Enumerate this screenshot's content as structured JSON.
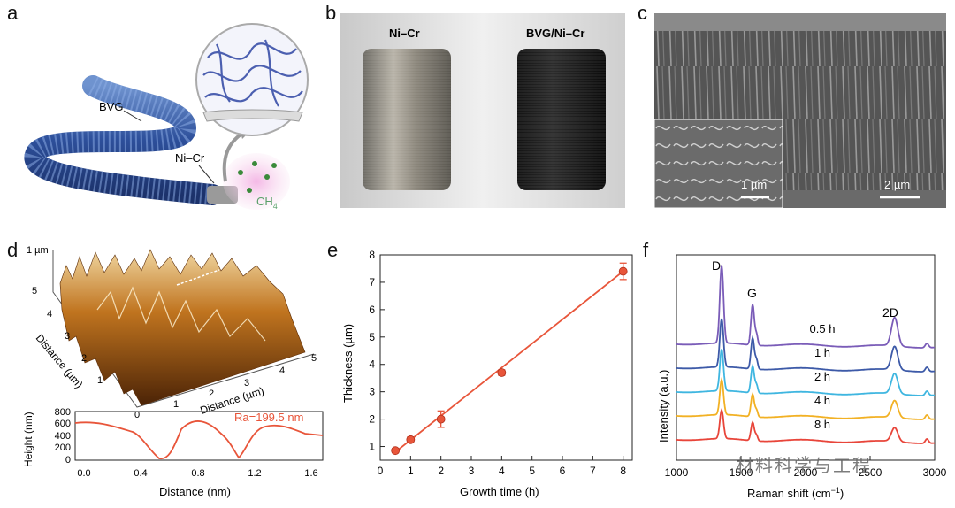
{
  "labels": {
    "a": "a",
    "b": "b",
    "c": "c",
    "d": "d",
    "e": "e",
    "f": "f"
  },
  "panel_a": {
    "bvg": "BVG",
    "nicr": "Ni–Cr",
    "ch4": "CH",
    "ch4_sub": "4"
  },
  "panel_b": {
    "left": "Ni–Cr",
    "right": "BVG/Ni–Cr"
  },
  "panel_c": {
    "inset_scale": "1 µm",
    "main_scale": "2 µm"
  },
  "panel_d": {
    "z_label": "1 µm",
    "y_axis_title": "Distance (µm)",
    "x_axis_title": "Distance (µm)",
    "y_ticks": [
      "0",
      "1",
      "2",
      "3",
      "4",
      "5"
    ],
    "x_ticks": [
      "0",
      "1",
      "2",
      "3",
      "4",
      "5"
    ],
    "profile_ylabel": "Height (nm)",
    "profile_xlabel": "Distance (nm)",
    "profile_yticks": [
      "0",
      "200",
      "400",
      "600",
      "800"
    ],
    "profile_xticks": [
      "0.0",
      "0.4",
      "0.8",
      "1.2",
      "1.6"
    ],
    "ra": "Ra=199.5 nm",
    "line_color": "#e8553a"
  },
  "chart_data": [
    {
      "type": "line",
      "panel": "e",
      "xlabel": "Growth time (h)",
      "ylabel": "Thickness (µm)",
      "xlim": [
        0,
        8.3
      ],
      "ylim": [
        0.5,
        8
      ],
      "xticks": [
        "0",
        "1",
        "2",
        "3",
        "4",
        "5",
        "6",
        "7",
        "8"
      ],
      "yticks": [
        "1",
        "2",
        "3",
        "4",
        "5",
        "6",
        "7",
        "8"
      ],
      "series": [
        {
          "name": "Thickness",
          "x": [
            0.5,
            1,
            2,
            4,
            8
          ],
          "values": [
            0.85,
            1.25,
            2.0,
            3.7,
            7.4
          ],
          "err": [
            0.08,
            0.1,
            0.3,
            0.1,
            0.3
          ]
        }
      ],
      "fit": {
        "x": [
          0.5,
          8
        ],
        "y": [
          0.8,
          7.4
        ]
      },
      "color": "#e8553a"
    },
    {
      "type": "line",
      "panel": "f",
      "xlabel": "Raman shift (cm",
      "xlabel_sup": "−1",
      "xlabel_end": ")",
      "ylabel": "Intensity (a.u.)",
      "xlim": [
        1000,
        3000
      ],
      "xticks": [
        "1000",
        "1500",
        "2000",
        "2500",
        "3000"
      ],
      "peaks": {
        "D": "D",
        "G": "G",
        "2D": "2D"
      },
      "series": [
        {
          "name": "0.5 h",
          "color": "#7a5cb8"
        },
        {
          "name": "1 h",
          "color": "#3d5aa8"
        },
        {
          "name": "2 h",
          "color": "#3fb6e0"
        },
        {
          "name": "4 h",
          "color": "#f2b124"
        },
        {
          "name": "8 h",
          "color": "#e8453a"
        }
      ]
    }
  ],
  "watermark": "材料科学与工程"
}
